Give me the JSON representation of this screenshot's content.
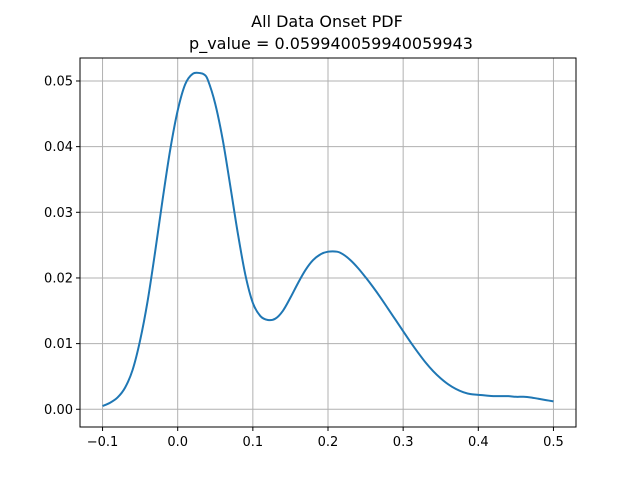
{
  "chart_data": {
    "type": "line",
    "title": "All Data Onset PDF",
    "subtitle": "p_value = 0.05994005994005994​3",
    "xlabel": "",
    "ylabel": "",
    "xlim": [
      -0.13,
      0.53
    ],
    "ylim": [
      -0.0027,
      0.0535
    ],
    "grid": true,
    "xticks": [
      -0.1,
      0.0,
      0.1,
      0.2,
      0.3,
      0.4,
      0.5
    ],
    "xtick_labels": [
      "−0.1",
      "0.0",
      "0.1",
      "0.2",
      "0.3",
      "0.4",
      "0.5"
    ],
    "yticks": [
      0.0,
      0.01,
      0.02,
      0.03,
      0.04,
      0.05
    ],
    "ytick_labels": [
      "0.00",
      "0.01",
      "0.02",
      "0.03",
      "0.04",
      "0.05"
    ],
    "series": [
      {
        "color": "#1f77b4",
        "x": [
          -0.1,
          -0.09,
          -0.08,
          -0.07,
          -0.06,
          -0.05,
          -0.04,
          -0.03,
          -0.02,
          -0.01,
          0.0,
          0.01,
          0.02,
          0.03,
          0.035,
          0.04,
          0.05,
          0.06,
          0.07,
          0.08,
          0.09,
          0.1,
          0.11,
          0.12,
          0.13,
          0.14,
          0.15,
          0.16,
          0.17,
          0.18,
          0.19,
          0.2,
          0.212,
          0.22,
          0.23,
          0.24,
          0.25,
          0.26,
          0.27,
          0.28,
          0.29,
          0.3,
          0.31,
          0.32,
          0.33,
          0.34,
          0.35,
          0.36,
          0.37,
          0.38,
          0.39,
          0.4,
          0.41,
          0.42,
          0.43,
          0.44,
          0.45,
          0.46,
          0.47,
          0.48,
          0.49,
          0.5
        ],
        "y": [
          0.0005,
          0.001,
          0.0018,
          0.0033,
          0.006,
          0.0105,
          0.0165,
          0.024,
          0.032,
          0.0395,
          0.0455,
          0.0495,
          0.0511,
          0.0512,
          0.051,
          0.0502,
          0.0465,
          0.041,
          0.034,
          0.0268,
          0.0205,
          0.0162,
          0.0142,
          0.0136,
          0.0138,
          0.015,
          0.017,
          0.0192,
          0.0212,
          0.0227,
          0.0236,
          0.024,
          0.024,
          0.0236,
          0.0227,
          0.0215,
          0.0201,
          0.0186,
          0.017,
          0.0153,
          0.0136,
          0.0119,
          0.0102,
          0.0086,
          0.0071,
          0.0058,
          0.0047,
          0.0038,
          0.0031,
          0.0026,
          0.0023,
          0.0022,
          0.0021,
          0.002,
          0.002,
          0.002,
          0.0019,
          0.0019,
          0.0018,
          0.0016,
          0.0014,
          0.0012
        ]
      }
    ]
  }
}
